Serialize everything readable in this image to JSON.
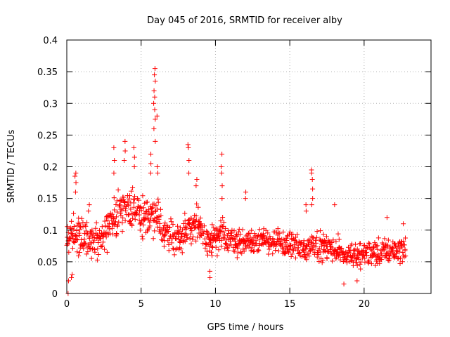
{
  "chart_data": {
    "type": "scatter",
    "title": "Day 045 of 2016, SRMTID for receiver alby",
    "xlabel": "GPS time / hours",
    "ylabel": "SRMTID / TECUs",
    "xlim": [
      0,
      24.5
    ],
    "ylim": [
      0,
      0.4
    ],
    "x_ticks": [
      0,
      5,
      10,
      15,
      20
    ],
    "x_tick_labels": [
      "0",
      "5",
      "10",
      "15",
      "20"
    ],
    "y_ticks": [
      0,
      0.05,
      0.1,
      0.15,
      0.2,
      0.25,
      0.3,
      0.35,
      0.4
    ],
    "y_tick_labels": [
      "0",
      "0.05",
      "0.1",
      "0.15",
      "0.2",
      "0.25",
      "0.3",
      "0.35",
      "0.4"
    ],
    "grid": true,
    "marker": "+",
    "series": [
      {
        "name": "SRMTID",
        "color": "#ff0000",
        "envelope": [
          {
            "x": 0.0,
            "base": 0.085,
            "spread": 0.035
          },
          {
            "x": 0.5,
            "base": 0.095,
            "spread": 0.045
          },
          {
            "x": 1.0,
            "base": 0.09,
            "spread": 0.045
          },
          {
            "x": 1.5,
            "base": 0.085,
            "spread": 0.04
          },
          {
            "x": 2.0,
            "base": 0.085,
            "spread": 0.04
          },
          {
            "x": 2.5,
            "base": 0.095,
            "spread": 0.04
          },
          {
            "x": 3.0,
            "base": 0.115,
            "spread": 0.05
          },
          {
            "x": 3.5,
            "base": 0.13,
            "spread": 0.055
          },
          {
            "x": 4.0,
            "base": 0.135,
            "spread": 0.055
          },
          {
            "x": 4.5,
            "base": 0.135,
            "spread": 0.05
          },
          {
            "x": 5.0,
            "base": 0.12,
            "spread": 0.045
          },
          {
            "x": 5.5,
            "base": 0.125,
            "spread": 0.05
          },
          {
            "x": 6.0,
            "base": 0.12,
            "spread": 0.05
          },
          {
            "x": 6.5,
            "base": 0.1,
            "spread": 0.04
          },
          {
            "x": 7.0,
            "base": 0.09,
            "spread": 0.035
          },
          {
            "x": 7.5,
            "base": 0.09,
            "spread": 0.035
          },
          {
            "x": 8.0,
            "base": 0.1,
            "spread": 0.04
          },
          {
            "x": 8.5,
            "base": 0.11,
            "spread": 0.045
          },
          {
            "x": 9.0,
            "base": 0.1,
            "spread": 0.04
          },
          {
            "x": 9.5,
            "base": 0.08,
            "spread": 0.035
          },
          {
            "x": 10.0,
            "base": 0.085,
            "spread": 0.035
          },
          {
            "x": 10.5,
            "base": 0.095,
            "spread": 0.035
          },
          {
            "x": 11.0,
            "base": 0.085,
            "spread": 0.03
          },
          {
            "x": 12.0,
            "base": 0.08,
            "spread": 0.03
          },
          {
            "x": 13.0,
            "base": 0.085,
            "spread": 0.03
          },
          {
            "x": 14.0,
            "base": 0.08,
            "spread": 0.03
          },
          {
            "x": 15.0,
            "base": 0.075,
            "spread": 0.03
          },
          {
            "x": 16.0,
            "base": 0.07,
            "spread": 0.03
          },
          {
            "x": 16.5,
            "base": 0.08,
            "spread": 0.035
          },
          {
            "x": 17.0,
            "base": 0.075,
            "spread": 0.03
          },
          {
            "x": 18.0,
            "base": 0.07,
            "spread": 0.03
          },
          {
            "x": 19.0,
            "base": 0.06,
            "spread": 0.03
          },
          {
            "x": 20.0,
            "base": 0.06,
            "spread": 0.03
          },
          {
            "x": 21.0,
            "base": 0.065,
            "spread": 0.03
          },
          {
            "x": 22.0,
            "base": 0.07,
            "spread": 0.03
          },
          {
            "x": 22.8,
            "base": 0.07,
            "spread": 0.03
          }
        ],
        "peaks": [
          {
            "x": 0.6,
            "values": [
              0.16,
              0.175,
              0.185,
              0.19
            ]
          },
          {
            "x": 1.5,
            "values": [
              0.13,
              0.14
            ]
          },
          {
            "x": 3.2,
            "values": [
              0.19,
              0.21,
              0.23
            ]
          },
          {
            "x": 3.9,
            "values": [
              0.21,
              0.225,
              0.24
            ]
          },
          {
            "x": 4.5,
            "values": [
              0.2,
              0.215,
              0.23
            ]
          },
          {
            "x": 5.7,
            "values": [
              0.19,
              0.205,
              0.22
            ]
          },
          {
            "x": 5.9,
            "values": [
              0.24,
              0.26,
              0.275,
              0.29,
              0.3,
              0.31,
              0.32,
              0.335,
              0.345,
              0.355
            ]
          },
          {
            "x": 6.1,
            "values": [
              0.28,
              0.2,
              0.19
            ]
          },
          {
            "x": 8.2,
            "values": [
              0.19,
              0.21,
              0.23,
              0.235
            ]
          },
          {
            "x": 8.7,
            "values": [
              0.17,
              0.18
            ]
          },
          {
            "x": 10.4,
            "values": [
              0.15,
              0.17,
              0.19,
              0.2,
              0.22
            ]
          },
          {
            "x": 12.0,
            "values": [
              0.15,
              0.16
            ]
          },
          {
            "x": 16.1,
            "values": [
              0.13,
              0.14
            ]
          },
          {
            "x": 16.5,
            "values": [
              0.14,
              0.15,
              0.165,
              0.18,
              0.19,
              0.195
            ]
          },
          {
            "x": 18.0,
            "values": [
              0.14
            ]
          },
          {
            "x": 21.5,
            "values": [
              0.12
            ]
          },
          {
            "x": 22.6,
            "values": [
              0.11
            ]
          }
        ],
        "lows": [
          {
            "x": 0.1,
            "values": [
              0.0,
              0.02
            ]
          },
          {
            "x": 0.35,
            "values": [
              0.025,
              0.03
            ]
          },
          {
            "x": 9.6,
            "values": [
              0.025,
              0.035
            ]
          },
          {
            "x": 18.6,
            "values": [
              0.015
            ]
          },
          {
            "x": 19.5,
            "values": [
              0.02
            ]
          }
        ]
      }
    ]
  }
}
